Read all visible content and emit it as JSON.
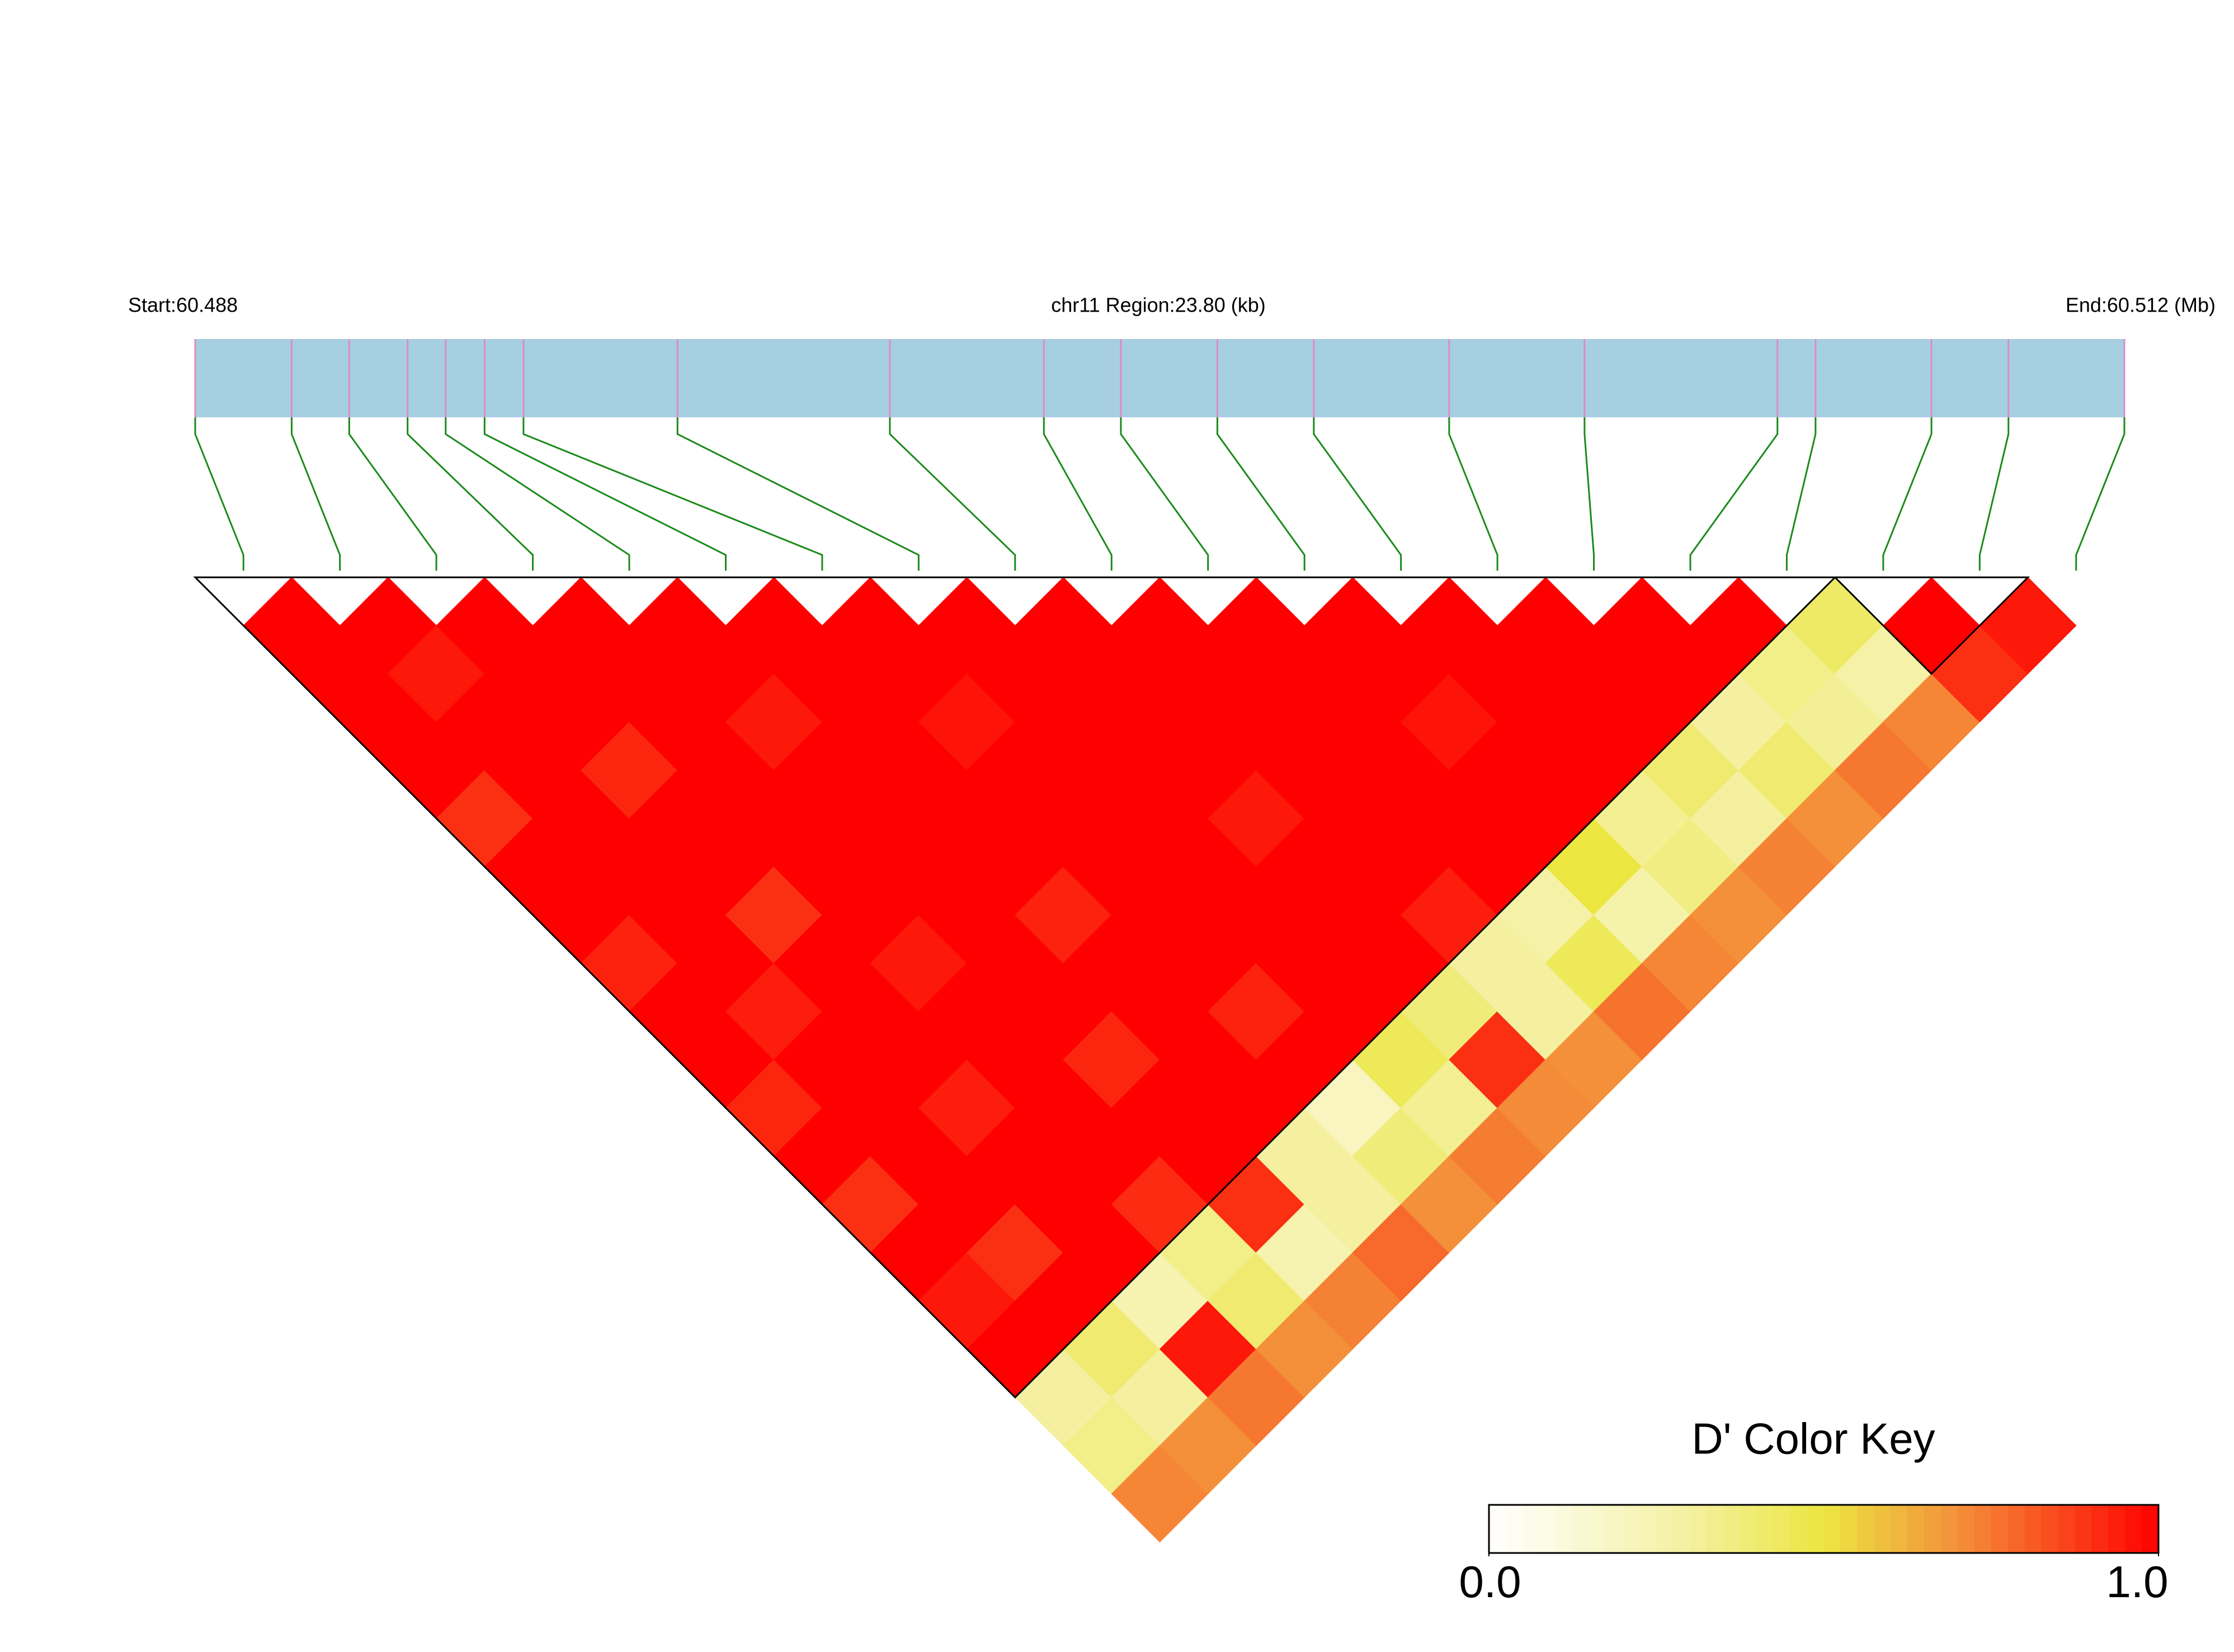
{
  "chart_data": {
    "type": "ld_heatmap",
    "start_label": "Start:60.488",
    "center_label": "chr11 Region:23.80 (kb)",
    "end_label": "End:60.512 (Mb)",
    "xlim": [
      0,
      23.8
    ],
    "snp_positions": [
      0,
      1.19,
      1.9,
      2.62,
      3.09,
      3.57,
      4.05,
      5.95,
      8.57,
      10.47,
      11.42,
      12.61,
      13.8,
      15.47,
      17.14,
      19.52,
      19.99,
      21.42,
      22.37,
      23.8
    ],
    "dprime": [
      [],
      [
        1
      ],
      [
        1,
        1
      ],
      [
        1,
        0.95,
        1
      ],
      [
        1,
        1,
        1,
        1
      ],
      [
        0.9,
        1,
        1,
        1,
        1
      ],
      [
        1,
        1,
        0.92,
        1,
        1,
        1
      ],
      [
        1,
        1,
        1,
        1,
        0.95,
        1,
        1
      ],
      [
        0.93,
        1,
        1,
        1,
        1,
        1,
        1,
        1
      ],
      [
        1,
        1,
        0.9,
        1,
        1,
        1,
        0.96,
        1,
        1
      ],
      [
        1,
        0.94,
        1,
        1,
        1,
        1,
        1,
        1,
        1,
        1
      ],
      [
        0.92,
        1,
        1,
        0.95,
        1,
        1,
        1,
        1,
        1,
        1,
        1
      ],
      [
        1,
        1,
        1,
        1,
        1,
        0.93,
        1,
        1,
        1,
        1,
        1,
        1
      ],
      [
        0.9,
        1,
        0.94,
        1,
        1,
        1,
        1,
        1,
        0.95,
        1,
        1,
        1,
        1
      ],
      [
        1,
        1,
        1,
        1,
        0.92,
        1,
        1,
        1,
        1,
        1,
        1,
        0.96,
        1,
        1
      ],
      [
        0.95,
        0.9,
        1,
        1,
        1,
        1,
        0.93,
        1,
        1,
        1,
        1,
        1,
        1,
        1,
        1
      ],
      [
        1,
        1,
        1,
        0.91,
        1,
        1,
        1,
        1,
        1,
        0.94,
        1,
        1,
        1,
        1,
        1,
        1
      ],
      [
        0.3,
        0.4,
        0.25,
        0.35,
        0.9,
        0.3,
        0.2,
        0.45,
        0.38,
        0.3,
        0.28,
        0.5,
        0.33,
        0.4,
        0.3,
        0.35,
        0.42
      ],
      [
        0.35,
        0.3,
        0.95,
        0.4,
        0.25,
        0.3,
        0.38,
        0.33,
        0.9,
        0.3,
        0.45,
        0.27,
        0.36,
        0.3,
        0.4,
        0.32,
        0.28,
        1
      ],
      [
        0.72,
        0.7,
        0.75,
        0.7,
        0.73,
        0.78,
        0.7,
        0.74,
        0.71,
        0.7,
        0.76,
        0.72,
        0.7,
        0.73,
        0.7,
        0.75,
        0.72,
        0.9,
        0.95
      ]
    ],
    "blocks": [
      [
        0,
        16
      ],
      [
        17,
        18
      ]
    ],
    "bar_color": "#a6cfe2",
    "snp_tick_color": "#e08ac8",
    "connector_color": "#1a8a1a",
    "block_outline_color": "#000000",
    "colorscale": [
      [
        0,
        "#ffffff"
      ],
      [
        0.3,
        "#f4f0a0"
      ],
      [
        0.5,
        "#ebe640"
      ],
      [
        0.7,
        "#f4903a"
      ],
      [
        1,
        "#ff0000"
      ]
    ],
    "key_title": "D' Color Key",
    "key_lim": [
      0,
      1
    ],
    "key_ticks": [
      {
        "value": 0,
        "label": "0.0"
      },
      {
        "value": 1,
        "label": "1.0"
      }
    ]
  }
}
